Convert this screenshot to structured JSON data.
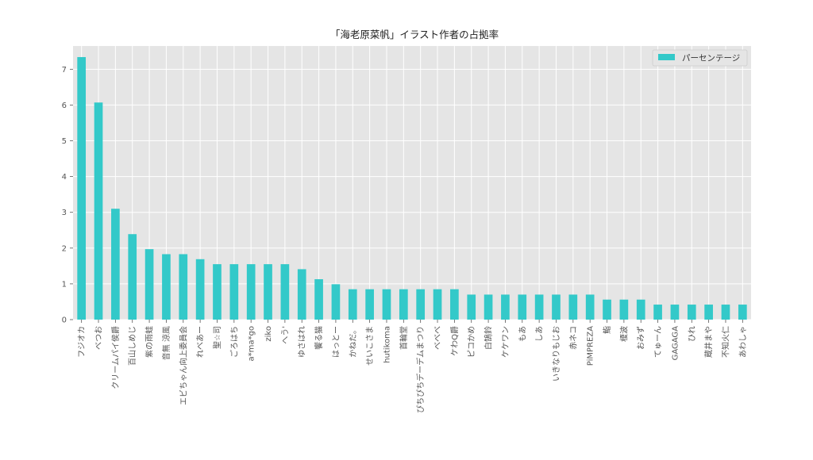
{
  "chart_data": {
    "type": "bar",
    "title": "「海老原菜帆」イラスト作者の占拠率",
    "xlabel": "",
    "ylabel": "",
    "ylim": [
      0,
      7.65
    ],
    "yticks": [
      0,
      1,
      2,
      3,
      4,
      5,
      6,
      7
    ],
    "grid": true,
    "legend_position": "top-right",
    "categories": [
      "フジオカ",
      "べつお",
      "クリームパイ侯爵",
      "百山しめじ",
      "紫の雨蛙",
      "音無 涼風",
      "エビちゃん向上委員会",
      "れべあー",
      "聖☆司",
      "ごろはち",
      "a*ma*go",
      "ziko",
      "へう'",
      "ゆさはれ",
      "饗る猫",
      "はっとー",
      "かねだ。",
      "せいこさま",
      "hutikoma",
      "首輪堂",
      "ぴちぴちデーデムまつり",
      "べべべ",
      "ケわQ爵",
      "ピコかめ",
      "白鵠鈴",
      "ケケワン",
      "もあ",
      "しあ",
      "いきなりもじお",
      "赤ネコ",
      "PiMPREZA",
      "鮨",
      "榎波",
      "おみず",
      "てゅーん",
      "GAGAGA",
      "ひれ",
      "蔵井まや",
      "不知火仁",
      "あわしゃ"
    ],
    "series": [
      {
        "name": "パーセンテージ",
        "color": "#33c9c9",
        "values": [
          7.34,
          6.07,
          3.1,
          2.39,
          1.97,
          1.83,
          1.83,
          1.69,
          1.55,
          1.55,
          1.55,
          1.55,
          1.55,
          1.41,
          1.13,
          0.99,
          0.85,
          0.85,
          0.85,
          0.85,
          0.85,
          0.85,
          0.85,
          0.7,
          0.7,
          0.7,
          0.7,
          0.7,
          0.7,
          0.7,
          0.7,
          0.56,
          0.56,
          0.56,
          0.42,
          0.42,
          0.42,
          0.42,
          0.42,
          0.42
        ]
      }
    ],
    "colors": {
      "plot_background": "#e5e5e5",
      "grid": "#ffffff",
      "text": "#555555"
    }
  }
}
